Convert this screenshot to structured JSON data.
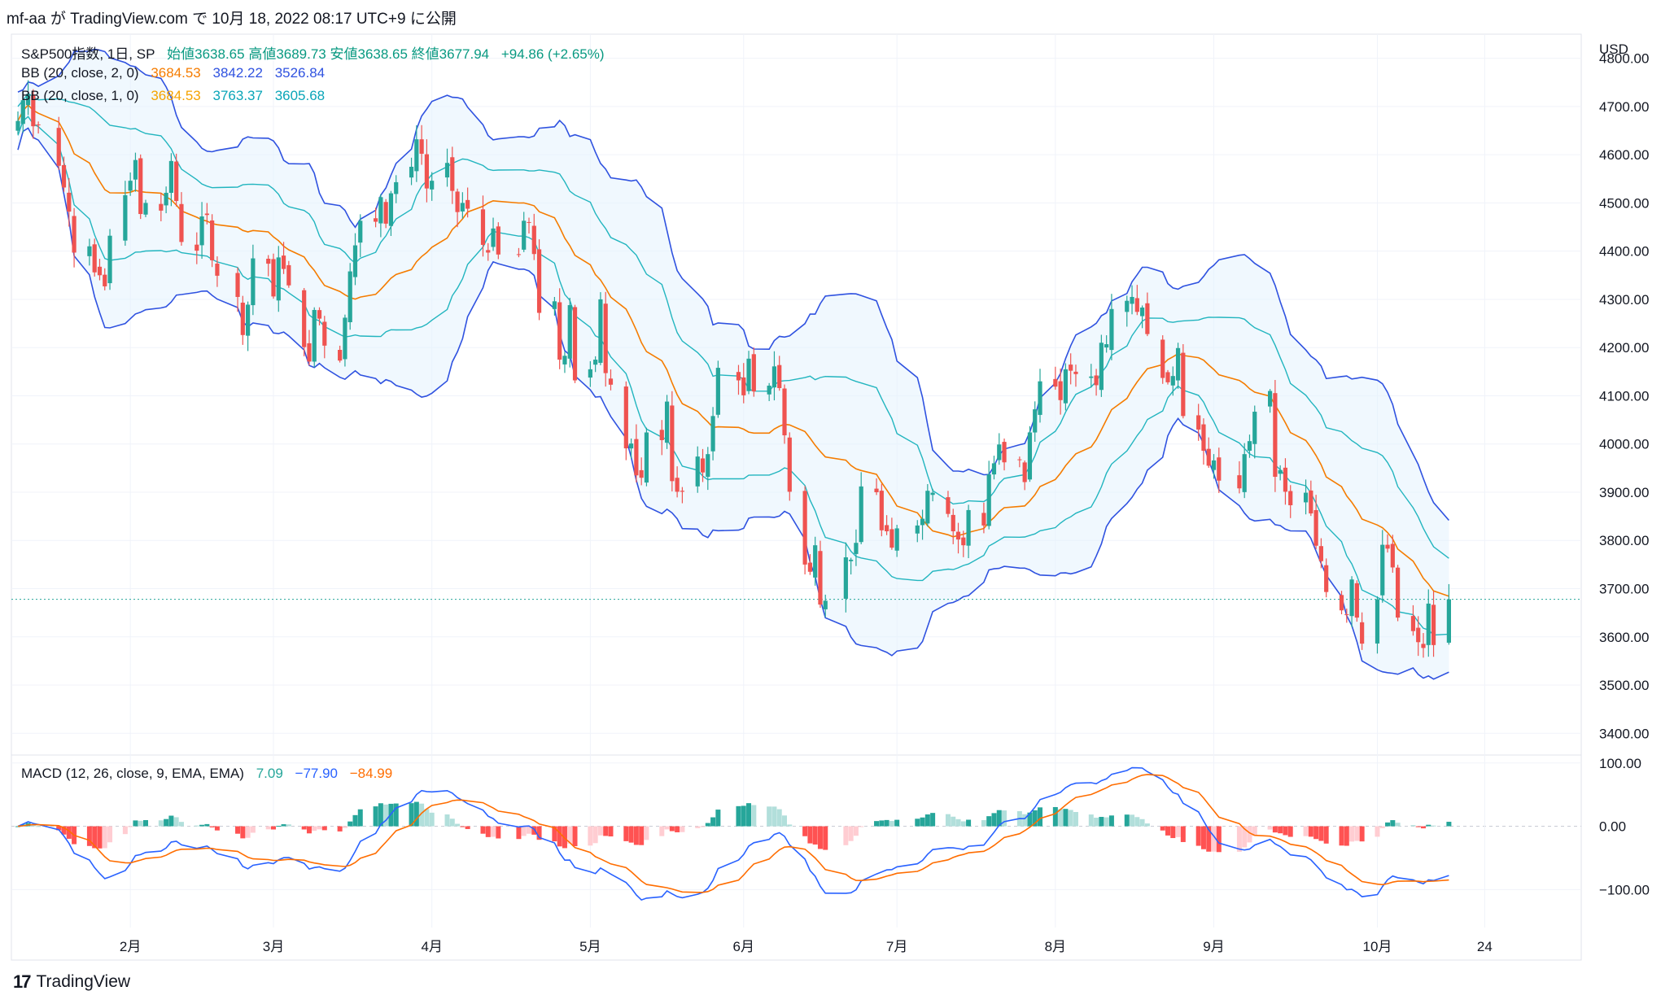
{
  "header": {
    "text": "mf-aa が TradingView.com で 10月 18, 2022 08:17 UTC+9 に公開"
  },
  "legend": {
    "symbol": "S&P500指数, 1日, SP",
    "ohlc": "始値3638.65  高値3689.73  安値3638.65  終値3677.94",
    "change": "+94.86 (+2.65%)",
    "bb2_label": "BB (20, close, 2, 0)",
    "bb2_mid": "3684.53",
    "bb2_up": "3842.22",
    "bb2_low": "3526.84",
    "bb1_label": "BB (20, close, 1, 0)",
    "bb1_mid": "3684.53",
    "bb1_up": "3763.37",
    "bb1_low": "3605.68",
    "macd_label": "MACD (12, 26, close, 9, EMA, EMA)",
    "macd_hist": "7.09",
    "macd_line": "−77.90",
    "macd_signal": "−84.99"
  },
  "brand": {
    "logo": "17",
    "name": "TradingView"
  },
  "colors": {
    "up": "#26a69a",
    "down": "#ef5350",
    "bb_outer": "#2f52e0",
    "bb_inner": "#22b5bf",
    "basis": "#f57c00",
    "fill": "#e3f2fd",
    "hist_up_strong": "#26a69a",
    "hist_up_weak": "#b2dfdb",
    "hist_dn_strong": "#ff5252",
    "hist_dn_weak": "#ffcdd2",
    "macd": "#2962ff",
    "signal": "#ff6d00"
  },
  "chart_data": {
    "type": "candlestick",
    "price_axis": {
      "currency": "USD",
      "ylim": [
        3360,
        4850
      ],
      "ticks": [
        4800,
        4700,
        4600,
        4500,
        4400,
        4300,
        4200,
        4100,
        4000,
        3900,
        3800,
        3700,
        3600,
        3500,
        3400
      ],
      "tick_labels": [
        "4800.00",
        "4700.00",
        "4600.00",
        "4500.00",
        "4400.00",
        "4300.00",
        "4200.00",
        "4100.00",
        "4000.00",
        "3900.00",
        "3800.00",
        "3700.00",
        "3600.00",
        "3500.00",
        "3400.00"
      ]
    },
    "macd_axis": {
      "ylim": [
        -160,
        110
      ],
      "ticks": [
        100,
        0,
        -100
      ],
      "tick_labels": [
        "100.00",
        "0.00",
        "−100.00"
      ]
    },
    "x_labels": [
      {
        "label": "2月",
        "date": "2022-02-01"
      },
      {
        "label": "3月",
        "date": "2022-03-01"
      },
      {
        "label": "4月",
        "date": "2022-04-01"
      },
      {
        "label": "5月",
        "date": "2022-05-02"
      },
      {
        "label": "6月",
        "date": "2022-06-01"
      },
      {
        "label": "7月",
        "date": "2022-07-01"
      },
      {
        "label": "8月",
        "date": "2022-08-01"
      },
      {
        "label": "9月",
        "date": "2022-09-01"
      },
      {
        "label": "10月",
        "date": "2022-10-03"
      },
      {
        "label": "24",
        "date": "2022-10-24"
      }
    ],
    "last_close": 3677.94,
    "closes": [
      [
        "2022-01-10",
        4670
      ],
      [
        "2022-01-11",
        4713
      ],
      [
        "2022-01-12",
        4726
      ],
      [
        "2022-01-13",
        4659
      ],
      [
        "2022-01-14",
        4662
      ],
      [
        "2022-01-18",
        4577
      ],
      [
        "2022-01-19",
        4532
      ],
      [
        "2022-01-20",
        4482
      ],
      [
        "2022-01-21",
        4397
      ],
      [
        "2022-01-24",
        4410
      ],
      [
        "2022-01-25",
        4356
      ],
      [
        "2022-01-26",
        4350
      ],
      [
        "2022-01-27",
        4327
      ],
      [
        "2022-01-28",
        4432
      ],
      [
        "2022-01-31",
        4516
      ],
      [
        "2022-02-01",
        4546
      ],
      [
        "2022-02-02",
        4589
      ],
      [
        "2022-02-03",
        4477
      ],
      [
        "2022-02-04",
        4500
      ],
      [
        "2022-02-07",
        4484
      ],
      [
        "2022-02-08",
        4521
      ],
      [
        "2022-02-09",
        4587
      ],
      [
        "2022-02-10",
        4504
      ],
      [
        "2022-02-11",
        4419
      ],
      [
        "2022-02-14",
        4401
      ],
      [
        "2022-02-15",
        4472
      ],
      [
        "2022-02-16",
        4475
      ],
      [
        "2022-02-17",
        4381
      ],
      [
        "2022-02-18",
        4349
      ],
      [
        "2022-02-22",
        4305
      ],
      [
        "2022-02-23",
        4226
      ],
      [
        "2022-02-24",
        4289
      ],
      [
        "2022-02-25",
        4385
      ],
      [
        "2022-02-28",
        4374
      ],
      [
        "2022-03-01",
        4306
      ],
      [
        "2022-03-02",
        4387
      ],
      [
        "2022-03-03",
        4363
      ],
      [
        "2022-03-04",
        4329
      ],
      [
        "2022-03-07",
        4201
      ],
      [
        "2022-03-08",
        4171
      ],
      [
        "2022-03-09",
        4278
      ],
      [
        "2022-03-10",
        4260
      ],
      [
        "2022-03-11",
        4204
      ],
      [
        "2022-03-14",
        4173
      ],
      [
        "2022-03-15",
        4262
      ],
      [
        "2022-03-16",
        4358
      ],
      [
        "2022-03-17",
        4412
      ],
      [
        "2022-03-18",
        4463
      ],
      [
        "2022-03-21",
        4461
      ],
      [
        "2022-03-22",
        4512
      ],
      [
        "2022-03-23",
        4457
      ],
      [
        "2022-03-24",
        4520
      ],
      [
        "2022-03-25",
        4543
      ],
      [
        "2022-03-28",
        4575
      ],
      [
        "2022-03-29",
        4632
      ],
      [
        "2022-03-30",
        4602
      ],
      [
        "2022-03-31",
        4530
      ],
      [
        "2022-04-01",
        4546
      ],
      [
        "2022-04-04",
        4583
      ],
      [
        "2022-04-05",
        4525
      ],
      [
        "2022-04-06",
        4481
      ],
      [
        "2022-04-07",
        4500
      ],
      [
        "2022-04-08",
        4488
      ],
      [
        "2022-04-11",
        4413
      ],
      [
        "2022-04-12",
        4397
      ],
      [
        "2022-04-13",
        4447
      ],
      [
        "2022-04-14",
        4393
      ],
      [
        "2022-04-18",
        4392
      ],
      [
        "2022-04-19",
        4463
      ],
      [
        "2022-04-20",
        4459
      ],
      [
        "2022-04-21",
        4394
      ],
      [
        "2022-04-22",
        4272
      ],
      [
        "2022-04-25",
        4296
      ],
      [
        "2022-04-26",
        4175
      ],
      [
        "2022-04-27",
        4183
      ],
      [
        "2022-04-28",
        4288
      ],
      [
        "2022-04-29",
        4132
      ],
      [
        "2022-05-02",
        4155
      ],
      [
        "2022-05-03",
        4175
      ],
      [
        "2022-05-04",
        4300
      ],
      [
        "2022-05-05",
        4147
      ],
      [
        "2022-05-06",
        4123
      ],
      [
        "2022-05-09",
        3991
      ],
      [
        "2022-05-10",
        4001
      ],
      [
        "2022-05-11",
        3935
      ],
      [
        "2022-05-12",
        3930
      ],
      [
        "2022-05-13",
        4024
      ],
      [
        "2022-05-16",
        4008
      ],
      [
        "2022-05-17",
        4088
      ],
      [
        "2022-05-18",
        3923
      ],
      [
        "2022-05-19",
        3901
      ],
      [
        "2022-05-20",
        3901
      ],
      [
        "2022-05-23",
        3974
      ],
      [
        "2022-05-24",
        3941
      ],
      [
        "2022-05-25",
        3979
      ],
      [
        "2022-05-26",
        4058
      ],
      [
        "2022-05-27",
        4158
      ],
      [
        "2022-05-31",
        4132
      ],
      [
        "2022-06-01",
        4101
      ],
      [
        "2022-06-02",
        4177
      ],
      [
        "2022-06-03",
        4109
      ],
      [
        "2022-06-06",
        4121
      ],
      [
        "2022-06-07",
        4161
      ],
      [
        "2022-06-08",
        4116
      ],
      [
        "2022-06-09",
        4018
      ],
      [
        "2022-06-10",
        3901
      ],
      [
        "2022-06-13",
        3750
      ],
      [
        "2022-06-14",
        3735
      ],
      [
        "2022-06-15",
        3790
      ],
      [
        "2022-06-16",
        3667
      ],
      [
        "2022-06-17",
        3675
      ],
      [
        "2022-06-21",
        3765
      ],
      [
        "2022-06-22",
        3760
      ],
      [
        "2022-06-23",
        3795
      ],
      [
        "2022-06-24",
        3912
      ],
      [
        "2022-06-27",
        3900
      ],
      [
        "2022-06-28",
        3821
      ],
      [
        "2022-06-29",
        3819
      ],
      [
        "2022-06-30",
        3785
      ],
      [
        "2022-07-01",
        3825
      ],
      [
        "2022-07-05",
        3831
      ],
      [
        "2022-07-06",
        3845
      ],
      [
        "2022-07-07",
        3903
      ],
      [
        "2022-07-08",
        3899
      ],
      [
        "2022-07-11",
        3855
      ],
      [
        "2022-07-12",
        3819
      ],
      [
        "2022-07-13",
        3802
      ],
      [
        "2022-07-14",
        3790
      ],
      [
        "2022-07-15",
        3863
      ],
      [
        "2022-07-18",
        3831
      ],
      [
        "2022-07-19",
        3937
      ],
      [
        "2022-07-20",
        3960
      ],
      [
        "2022-07-21",
        3999
      ],
      [
        "2022-07-22",
        3962
      ],
      [
        "2022-07-25",
        3967
      ],
      [
        "2022-07-26",
        3921
      ],
      [
        "2022-07-27",
        4024
      ],
      [
        "2022-07-28",
        4072
      ],
      [
        "2022-07-29",
        4130
      ],
      [
        "2022-08-01",
        4119
      ],
      [
        "2022-08-02",
        4091
      ],
      [
        "2022-08-03",
        4155
      ],
      [
        "2022-08-04",
        4152
      ],
      [
        "2022-08-05",
        4145
      ],
      [
        "2022-08-08",
        4140
      ],
      [
        "2022-08-09",
        4122
      ],
      [
        "2022-08-10",
        4210
      ],
      [
        "2022-08-11",
        4207
      ],
      [
        "2022-08-12",
        4280
      ],
      [
        "2022-08-15",
        4297
      ],
      [
        "2022-08-16",
        4305
      ],
      [
        "2022-08-17",
        4274
      ],
      [
        "2022-08-18",
        4283
      ],
      [
        "2022-08-19",
        4228
      ],
      [
        "2022-08-22",
        4137
      ],
      [
        "2022-08-23",
        4128
      ],
      [
        "2022-08-24",
        4141
      ],
      [
        "2022-08-25",
        4199
      ],
      [
        "2022-08-26",
        4058
      ],
      [
        "2022-08-29",
        4030
      ],
      [
        "2022-08-30",
        3986
      ],
      [
        "2022-08-31",
        3955
      ],
      [
        "2022-09-01",
        3966
      ],
      [
        "2022-09-02",
        3924
      ],
      [
        "2022-09-06",
        3908
      ],
      [
        "2022-09-07",
        3979
      ],
      [
        "2022-09-08",
        4006
      ],
      [
        "2022-09-09",
        4067
      ],
      [
        "2022-09-12",
        4110
      ],
      [
        "2022-09-13",
        3932
      ],
      [
        "2022-09-14",
        3946
      ],
      [
        "2022-09-15",
        3901
      ],
      [
        "2022-09-16",
        3873
      ],
      [
        "2022-09-19",
        3899
      ],
      [
        "2022-09-20",
        3856
      ],
      [
        "2022-09-21",
        3789
      ],
      [
        "2022-09-22",
        3757
      ],
      [
        "2022-09-23",
        3693
      ],
      [
        "2022-09-26",
        3655
      ],
      [
        "2022-09-27",
        3647
      ],
      [
        "2022-09-28",
        3719
      ],
      [
        "2022-09-29",
        3640
      ],
      [
        "2022-09-30",
        3586
      ],
      [
        "2022-10-03",
        3678
      ],
      [
        "2022-10-04",
        3791
      ],
      [
        "2022-10-05",
        3783
      ],
      [
        "2022-10-06",
        3744
      ],
      [
        "2022-10-07",
        3640
      ],
      [
        "2022-10-10",
        3612
      ],
      [
        "2022-10-11",
        3589
      ],
      [
        "2022-10-12",
        3577
      ],
      [
        "2022-10-13",
        3669
      ],
      [
        "2022-10-14",
        3583
      ],
      [
        "2022-10-17",
        3678
      ]
    ]
  }
}
